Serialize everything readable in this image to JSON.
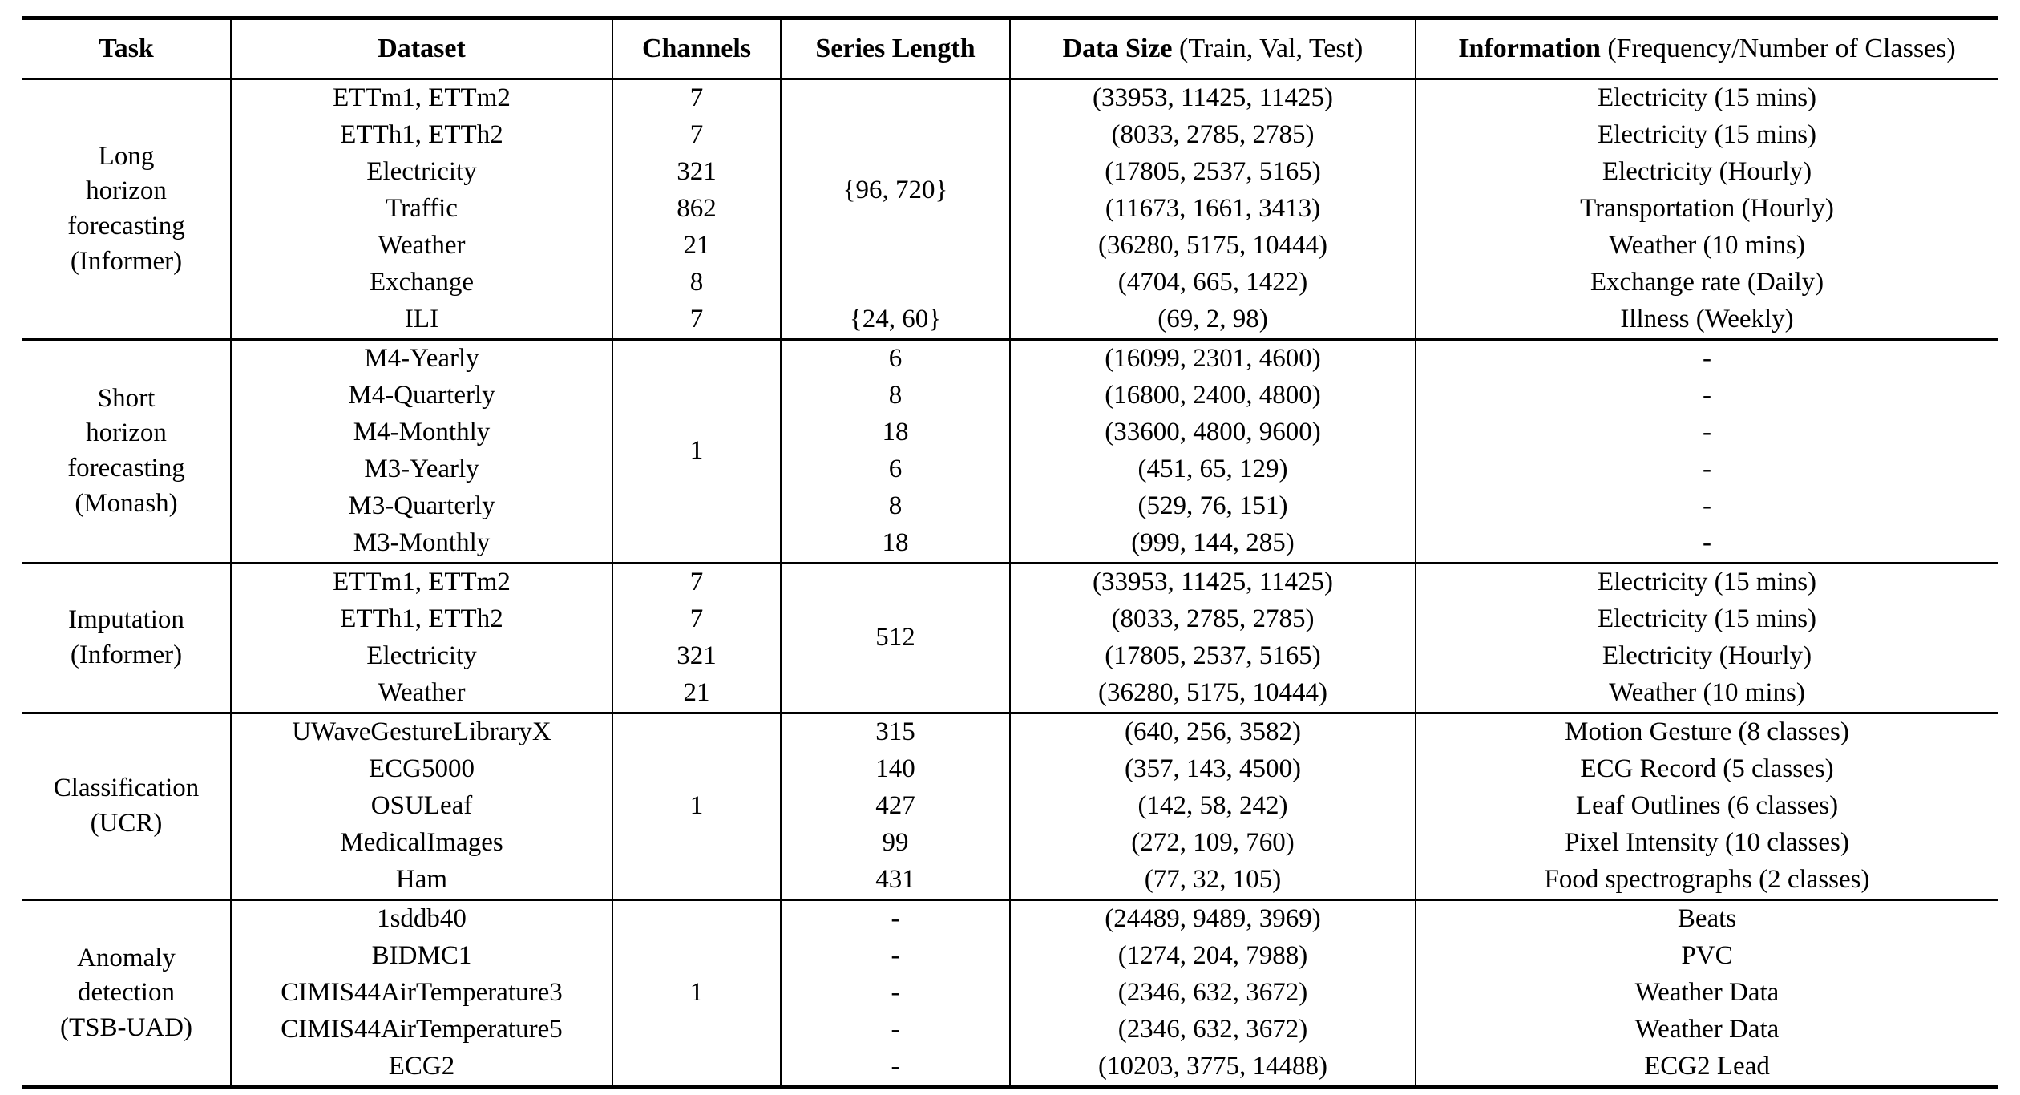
{
  "page": {
    "background": "#ffffff",
    "text_color": "#000000",
    "rule_color": "#000000"
  },
  "table": {
    "header": {
      "columns": [
        {
          "bold": "Task",
          "rest": ""
        },
        {
          "bold": "Dataset",
          "rest": ""
        },
        {
          "bold": "Channels",
          "rest": ""
        },
        {
          "bold": "Series Length",
          "rest": ""
        },
        {
          "bold": "Data Size",
          "rest": " (Train, Val, Test)"
        },
        {
          "bold": "Information",
          "rest": " (Frequency/Number of Classes)"
        }
      ]
    },
    "blocks": [
      {
        "task_label": "Long horizon forecasting (Informer)",
        "rows": [
          {
            "cells": [
              {
                "col": "task",
                "text": "Long\nhorizon\nforecasting\n(Informer)",
                "rowspan": 7
              },
              {
                "col": "dataset",
                "text": "ETTm1, ETTm2"
              },
              {
                "col": "channels",
                "text": "7"
              },
              {
                "col": "series",
                "text": "{96, 720}",
                "rowspan": 6
              },
              {
                "col": "datasize",
                "text": "(33953, 11425, 11425)"
              },
              {
                "col": "info",
                "text": "Electricity (15 mins)"
              }
            ]
          },
          {
            "cells": [
              {
                "col": "dataset",
                "text": "ETTh1, ETTh2"
              },
              {
                "col": "channels",
                "text": "7"
              },
              {
                "col": "datasize",
                "text": "(8033, 2785, 2785)"
              },
              {
                "col": "info",
                "text": "Electricity (15 mins)"
              }
            ]
          },
          {
            "cells": [
              {
                "col": "dataset",
                "text": "Electricity"
              },
              {
                "col": "channels",
                "text": "321"
              },
              {
                "col": "datasize",
                "text": "(17805, 2537, 5165)"
              },
              {
                "col": "info",
                "text": "Electricity (Hourly)"
              }
            ]
          },
          {
            "cells": [
              {
                "col": "dataset",
                "text": "Traffic"
              },
              {
                "col": "channels",
                "text": "862"
              },
              {
                "col": "datasize",
                "text": "(11673, 1661, 3413)"
              },
              {
                "col": "info",
                "text": "Transportation (Hourly)"
              }
            ]
          },
          {
            "cells": [
              {
                "col": "dataset",
                "text": "Weather"
              },
              {
                "col": "channels",
                "text": "21"
              },
              {
                "col": "datasize",
                "text": "(36280, 5175, 10444)"
              },
              {
                "col": "info",
                "text": "Weather (10 mins)"
              }
            ]
          },
          {
            "cells": [
              {
                "col": "dataset",
                "text": "Exchange"
              },
              {
                "col": "channels",
                "text": "8"
              },
              {
                "col": "datasize",
                "text": "(4704, 665, 1422)"
              },
              {
                "col": "info",
                "text": "Exchange rate (Daily)"
              }
            ]
          },
          {
            "cells": [
              {
                "col": "dataset",
                "text": "ILI"
              },
              {
                "col": "channels",
                "text": "7"
              },
              {
                "col": "series",
                "text": "{24, 60}"
              },
              {
                "col": "datasize",
                "text": "(69, 2, 98)"
              },
              {
                "col": "info",
                "text": "Illness (Weekly)"
              }
            ]
          }
        ]
      },
      {
        "task_label": "Short horizon forecasting (Monash)",
        "rows": [
          {
            "cells": [
              {
                "col": "task",
                "text": "Short\nhorizon\nforecasting\n(Monash)",
                "rowspan": 6
              },
              {
                "col": "dataset",
                "text": "M4-Yearly"
              },
              {
                "col": "channels",
                "text": "1",
                "rowspan": 6
              },
              {
                "col": "series",
                "text": "6"
              },
              {
                "col": "datasize",
                "text": "(16099, 2301, 4600)"
              },
              {
                "col": "info",
                "text": "-"
              }
            ]
          },
          {
            "cells": [
              {
                "col": "dataset",
                "text": "M4-Quarterly"
              },
              {
                "col": "series",
                "text": "8"
              },
              {
                "col": "datasize",
                "text": "(16800, 2400, 4800)"
              },
              {
                "col": "info",
                "text": "-"
              }
            ]
          },
          {
            "cells": [
              {
                "col": "dataset",
                "text": "M4-Monthly"
              },
              {
                "col": "series",
                "text": "18"
              },
              {
                "col": "datasize",
                "text": "(33600, 4800, 9600)"
              },
              {
                "col": "info",
                "text": "-"
              }
            ]
          },
          {
            "cells": [
              {
                "col": "dataset",
                "text": "M3-Yearly"
              },
              {
                "col": "series",
                "text": "6"
              },
              {
                "col": "datasize",
                "text": "(451, 65, 129)"
              },
              {
                "col": "info",
                "text": "-"
              }
            ]
          },
          {
            "cells": [
              {
                "col": "dataset",
                "text": "M3-Quarterly"
              },
              {
                "col": "series",
                "text": "8"
              },
              {
                "col": "datasize",
                "text": "(529, 76, 151)"
              },
              {
                "col": "info",
                "text": "-"
              }
            ]
          },
          {
            "cells": [
              {
                "col": "dataset",
                "text": "M3-Monthly"
              },
              {
                "col": "series",
                "text": "18"
              },
              {
                "col": "datasize",
                "text": "(999, 144, 285)"
              },
              {
                "col": "info",
                "text": "-"
              }
            ]
          }
        ]
      },
      {
        "task_label": "Imputation (Informer)",
        "rows": [
          {
            "cells": [
              {
                "col": "task",
                "text": "Imputation\n(Informer)",
                "rowspan": 4
              },
              {
                "col": "dataset",
                "text": "ETTm1, ETTm2"
              },
              {
                "col": "channels",
                "text": "7"
              },
              {
                "col": "series",
                "text": "512",
                "rowspan": 4
              },
              {
                "col": "datasize",
                "text": "(33953, 11425, 11425)"
              },
              {
                "col": "info",
                "text": "Electricity (15 mins)"
              }
            ]
          },
          {
            "cells": [
              {
                "col": "dataset",
                "text": "ETTh1, ETTh2"
              },
              {
                "col": "channels",
                "text": "7"
              },
              {
                "col": "datasize",
                "text": "(8033, 2785, 2785)"
              },
              {
                "col": "info",
                "text": "Electricity (15 mins)"
              }
            ]
          },
          {
            "cells": [
              {
                "col": "dataset",
                "text": "Electricity"
              },
              {
                "col": "channels",
                "text": "321"
              },
              {
                "col": "datasize",
                "text": "(17805, 2537, 5165)"
              },
              {
                "col": "info",
                "text": "Electricity (Hourly)"
              }
            ]
          },
          {
            "cells": [
              {
                "col": "dataset",
                "text": "Weather"
              },
              {
                "col": "channels",
                "text": "21"
              },
              {
                "col": "datasize",
                "text": "(36280, 5175, 10444)"
              },
              {
                "col": "info",
                "text": "Weather (10 mins)"
              }
            ]
          }
        ]
      },
      {
        "task_label": "Classification (UCR)",
        "rows": [
          {
            "cells": [
              {
                "col": "task",
                "text": "Classification\n(UCR)",
                "rowspan": 5
              },
              {
                "col": "dataset",
                "text": "UWaveGestureLibraryX"
              },
              {
                "col": "channels",
                "text": "1",
                "rowspan": 5
              },
              {
                "col": "series",
                "text": "315"
              },
              {
                "col": "datasize",
                "text": "(640, 256, 3582)"
              },
              {
                "col": "info",
                "text": "Motion Gesture (8 classes)"
              }
            ]
          },
          {
            "cells": [
              {
                "col": "dataset",
                "text": "ECG5000"
              },
              {
                "col": "series",
                "text": "140"
              },
              {
                "col": "datasize",
                "text": "(357, 143, 4500)"
              },
              {
                "col": "info",
                "text": "ECG Record (5 classes)"
              }
            ]
          },
          {
            "cells": [
              {
                "col": "dataset",
                "text": "OSULeaf"
              },
              {
                "col": "series",
                "text": "427"
              },
              {
                "col": "datasize",
                "text": "(142, 58, 242)"
              },
              {
                "col": "info",
                "text": "Leaf Outlines (6 classes)"
              }
            ]
          },
          {
            "cells": [
              {
                "col": "dataset",
                "text": "MedicalImages"
              },
              {
                "col": "series",
                "text": "99"
              },
              {
                "col": "datasize",
                "text": "(272, 109, 760)"
              },
              {
                "col": "info",
                "text": "Pixel Intensity (10 classes)"
              }
            ]
          },
          {
            "cells": [
              {
                "col": "dataset",
                "text": "Ham"
              },
              {
                "col": "series",
                "text": "431"
              },
              {
                "col": "datasize",
                "text": "(77, 32, 105)"
              },
              {
                "col": "info",
                "text": "Food spectrographs (2 classes)"
              }
            ]
          }
        ]
      },
      {
        "task_label": "Anomaly detection (TSB-UAD)",
        "rows": [
          {
            "cells": [
              {
                "col": "task",
                "text": "Anomaly\ndetection\n(TSB-UAD)",
                "rowspan": 5
              },
              {
                "col": "dataset",
                "text": "1sddb40"
              },
              {
                "col": "channels",
                "text": "1",
                "rowspan": 5
              },
              {
                "col": "series",
                "text": "-"
              },
              {
                "col": "datasize",
                "text": "(24489, 9489, 3969)"
              },
              {
                "col": "info",
                "text": "Beats"
              }
            ]
          },
          {
            "cells": [
              {
                "col": "dataset",
                "text": "BIDMC1"
              },
              {
                "col": "series",
                "text": "-"
              },
              {
                "col": "datasize",
                "text": "(1274, 204, 7988)"
              },
              {
                "col": "info",
                "text": "PVC"
              }
            ]
          },
          {
            "cells": [
              {
                "col": "dataset",
                "text": "CIMIS44AirTemperature3"
              },
              {
                "col": "series",
                "text": "-"
              },
              {
                "col": "datasize",
                "text": "(2346, 632, 3672)"
              },
              {
                "col": "info",
                "text": "Weather Data"
              }
            ]
          },
          {
            "cells": [
              {
                "col": "dataset",
                "text": "CIMIS44AirTemperature5"
              },
              {
                "col": "series",
                "text": "-"
              },
              {
                "col": "datasize",
                "text": "(2346, 632, 3672)"
              },
              {
                "col": "info",
                "text": "Weather Data"
              }
            ]
          },
          {
            "cells": [
              {
                "col": "dataset",
                "text": "ECG2"
              },
              {
                "col": "series",
                "text": "-"
              },
              {
                "col": "datasize",
                "text": "(10203, 3775, 14488)"
              },
              {
                "col": "info",
                "text": "ECG2 Lead"
              }
            ]
          }
        ]
      }
    ]
  }
}
